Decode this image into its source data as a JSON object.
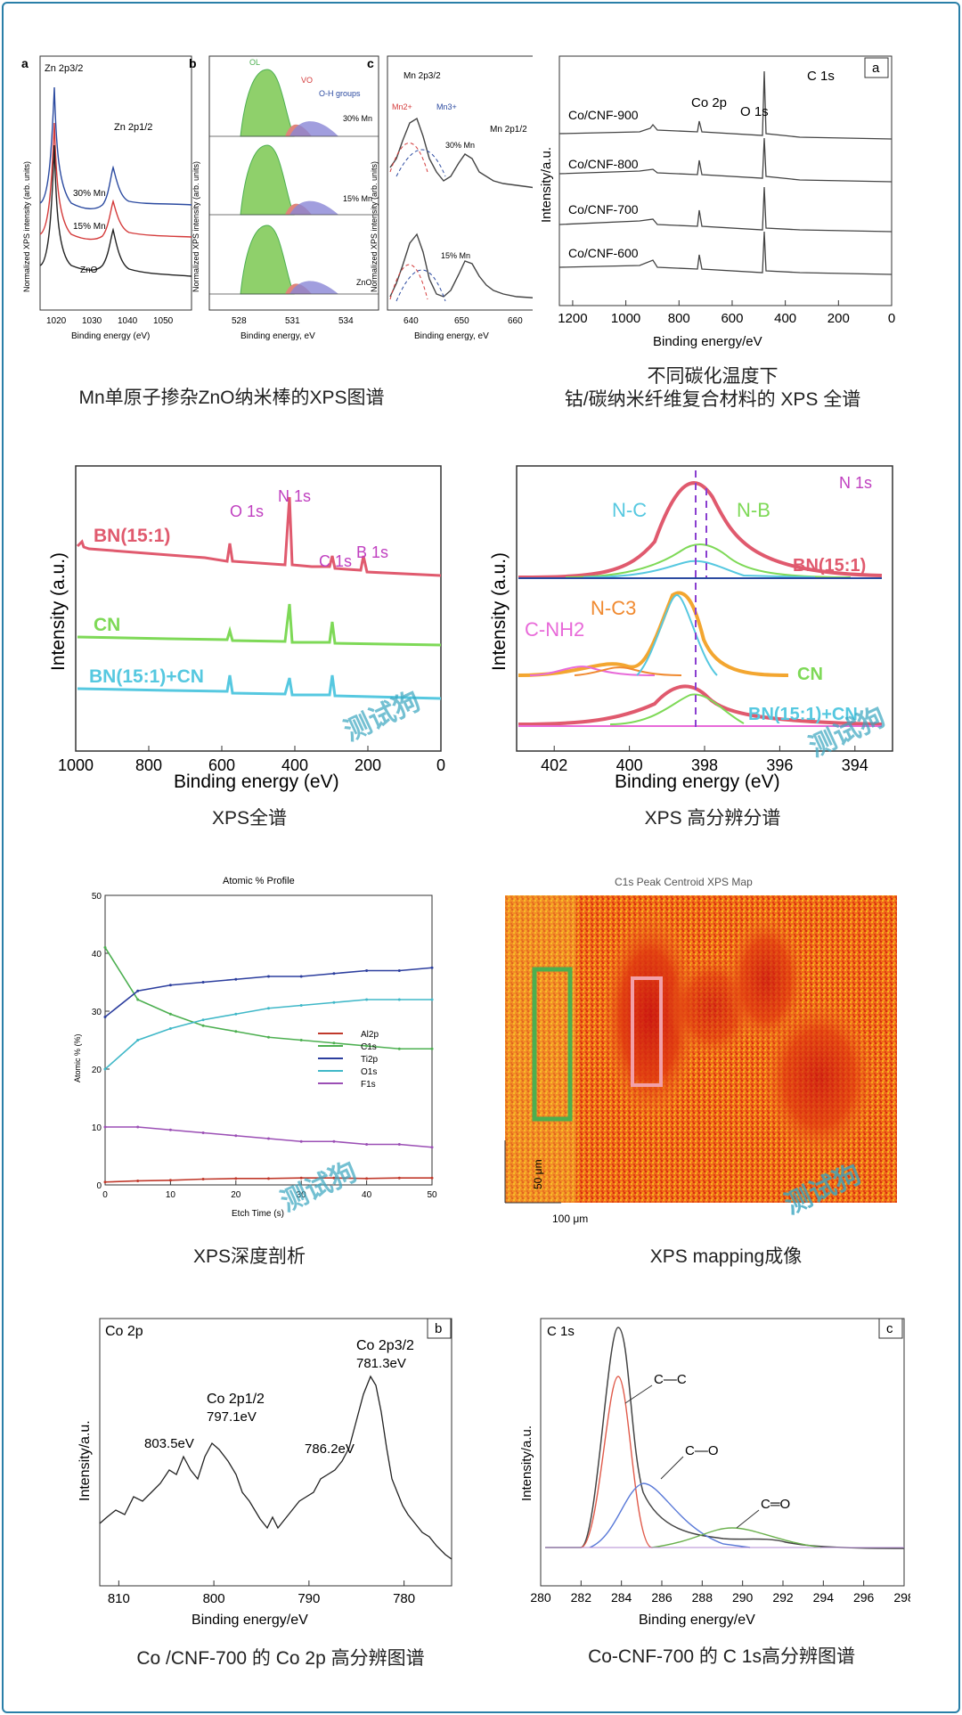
{
  "captions": {
    "mn_zno": "Mn单原子掺杂ZnO纳米棒的XPS图谱",
    "co_cnf_1": "不同碳化温度下",
    "co_cnf_2": "钴/碳纳米纤维复合材料的 XPS 全谱",
    "survey": "XPS全谱",
    "highres": "XPS 高分辨分谱",
    "depth": "XPS深度剖析",
    "mapping": "XPS mapping成像",
    "co2p": "Co /CNF-700 的 Co 2p 高分辨图谱",
    "c1s": "Co-CNF-700 的 C 1s高分辨图谱"
  },
  "watermark": "测试狗",
  "colors": {
    "frame": "#2a7fa8",
    "watermark": "#3aa6c0"
  },
  "chart_data": [
    {
      "id": "mn_zno_a",
      "type": "line",
      "panel_letter": "a",
      "xlabel": "Binding energy (eV)",
      "ylabel": "Normalized XPS intensity (arb. units)",
      "xticks": [
        "1020",
        "1030",
        "1040",
        "1050"
      ],
      "peak_labels": [
        "Zn 2p3/2",
        "Zn 2p1/2"
      ],
      "series": [
        {
          "name": "30% Mn",
          "color": "#2b4aa0"
        },
        {
          "name": "15% Mn",
          "color": "#d43a3a"
        },
        {
          "name": "ZnO",
          "color": "#222222"
        }
      ]
    },
    {
      "id": "mn_zno_b",
      "type": "line",
      "panel_letter": "b",
      "xlabel": "Binding energy, eV",
      "ylabel": "Normalized XPS intensity (arb. units)",
      "xticks": [
        "528",
        "531",
        "534"
      ],
      "component_labels": [
        "OL",
        "VO",
        "O-H groups"
      ],
      "series": [
        {
          "name": "30% Mn"
        },
        {
          "name": "15% Mn"
        },
        {
          "name": "ZnO"
        }
      ]
    },
    {
      "id": "mn_zno_c",
      "type": "line",
      "panel_letter": "c",
      "xlabel": "Binding energy, eV",
      "ylabel": "Normalized XPS intensity (arb. units)",
      "xticks": [
        "640",
        "650",
        "660"
      ],
      "labels": [
        "Mn 2p3/2",
        "Mn2+",
        "Mn3+",
        "Mn 2p1/2"
      ],
      "series": [
        {
          "name": "30% Mn"
        },
        {
          "name": "15% Mn"
        }
      ]
    },
    {
      "id": "co_cnf_survey",
      "type": "line",
      "panel_letter": "a",
      "xlabel": "Binding energy/eV",
      "ylabel": "Intensity/a.u.",
      "xlim": [
        1250,
        0
      ],
      "xticks": [
        1200,
        1000,
        800,
        600,
        400,
        200,
        0
      ],
      "annotations": [
        "Co 2p",
        "O 1s",
        "C 1s"
      ],
      "series": [
        {
          "name": "Co/CNF-900"
        },
        {
          "name": "Co/CNF-800"
        },
        {
          "name": "Co/CNF-700"
        },
        {
          "name": "Co/CNF-600"
        }
      ]
    },
    {
      "id": "bn_survey",
      "type": "line",
      "xlabel": "Binding energy (eV)",
      "ylabel": "Intensity (a.u.)",
      "xlim": [
        1000,
        0
      ],
      "xticks": [
        1000,
        800,
        600,
        400,
        200,
        0
      ],
      "peak_labels": [
        "O 1s",
        "N 1s",
        "C 1s",
        "B 1s"
      ],
      "series": [
        {
          "name": "BN(15:1)",
          "color": "#e05a6e"
        },
        {
          "name": "CN",
          "color": "#7ed957"
        },
        {
          "name": "BN(15:1)+CN",
          "color": "#56c8e0"
        }
      ]
    },
    {
      "id": "n1s_highres",
      "type": "line",
      "xlabel": "Binding energy (eV)",
      "ylabel": "Intensity (a.u.)",
      "xlim": [
        403,
        393
      ],
      "xticks": [
        402,
        400,
        398,
        396,
        394
      ],
      "title": "N 1s",
      "component_labels": [
        "N-C",
        "N-B",
        "C-NH2",
        "N-C3"
      ],
      "series": [
        {
          "name": "BN(15:1)"
        },
        {
          "name": "CN"
        },
        {
          "name": "BN(15:1)+CN"
        }
      ]
    },
    {
      "id": "depth_profile",
      "type": "line",
      "title": "Atomic % Profile",
      "xlabel": "Etch Time (s)",
      "ylabel": "Atomic % (%)",
      "xlim": [
        0,
        50
      ],
      "ylim": [
        0,
        50
      ],
      "xticks": [
        0,
        10,
        20,
        30,
        40,
        50
      ],
      "yticks": [
        0,
        10,
        20,
        30,
        40,
        50
      ],
      "x": [
        0,
        5,
        10,
        15,
        20,
        25,
        30,
        35,
        40,
        45,
        50
      ],
      "series": [
        {
          "name": "Al2p",
          "color": "#c0392b",
          "values": [
            0.5,
            0.7,
            0.8,
            1.0,
            1.1,
            1.1,
            1.2,
            1.2,
            1.1,
            1.2,
            1.2
          ]
        },
        {
          "name": "C1s",
          "color": "#4caf50",
          "values": [
            41,
            32,
            29.5,
            27.5,
            26.5,
            25.5,
            25,
            24.5,
            24,
            23.5,
            23.5
          ]
        },
        {
          "name": "Ti2p",
          "color": "#2c3e9e",
          "values": [
            29,
            33.5,
            34.5,
            35,
            35.5,
            36,
            36,
            36.5,
            37,
            37,
            37.5
          ]
        },
        {
          "name": "O1s",
          "color": "#40b8c8",
          "values": [
            20,
            25,
            27,
            28.5,
            29.5,
            30.5,
            31,
            31.5,
            32,
            32,
            32
          ]
        },
        {
          "name": "F1s",
          "color": "#9b4fb5",
          "values": [
            10,
            10,
            9.5,
            9,
            8.5,
            8,
            7.5,
            7.5,
            7,
            7,
            6.5
          ]
        }
      ]
    },
    {
      "id": "c1s_map",
      "type": "heatmap",
      "title": "C1s Peak Centroid XPS Map",
      "scale_labels": [
        "50 μm",
        "100 μm"
      ]
    },
    {
      "id": "co2p",
      "type": "line",
      "panel_letter": "b",
      "title": "Co 2p",
      "xlabel": "Binding energy/eV",
      "ylabel": "Intensity/a.u.",
      "xlim": [
        812,
        775
      ],
      "xticks": [
        810,
        800,
        790,
        780
      ],
      "peak_labels": [
        "803.5eV",
        "Co 2p1/2",
        "797.1eV",
        "786.2eV",
        "Co 2p3/2",
        "781.3eV"
      ]
    },
    {
      "id": "c1s",
      "type": "line",
      "panel_letter": "c",
      "title": "C 1s",
      "xlabel": "Binding energy/eV",
      "ylabel": "Intensity/a.u.",
      "xlim": [
        280,
        298
      ],
      "xticks": [
        280,
        282,
        284,
        286,
        288,
        290,
        292,
        294,
        296,
        298
      ],
      "component_labels": [
        "C—C",
        "C—O",
        "C═O"
      ]
    }
  ]
}
